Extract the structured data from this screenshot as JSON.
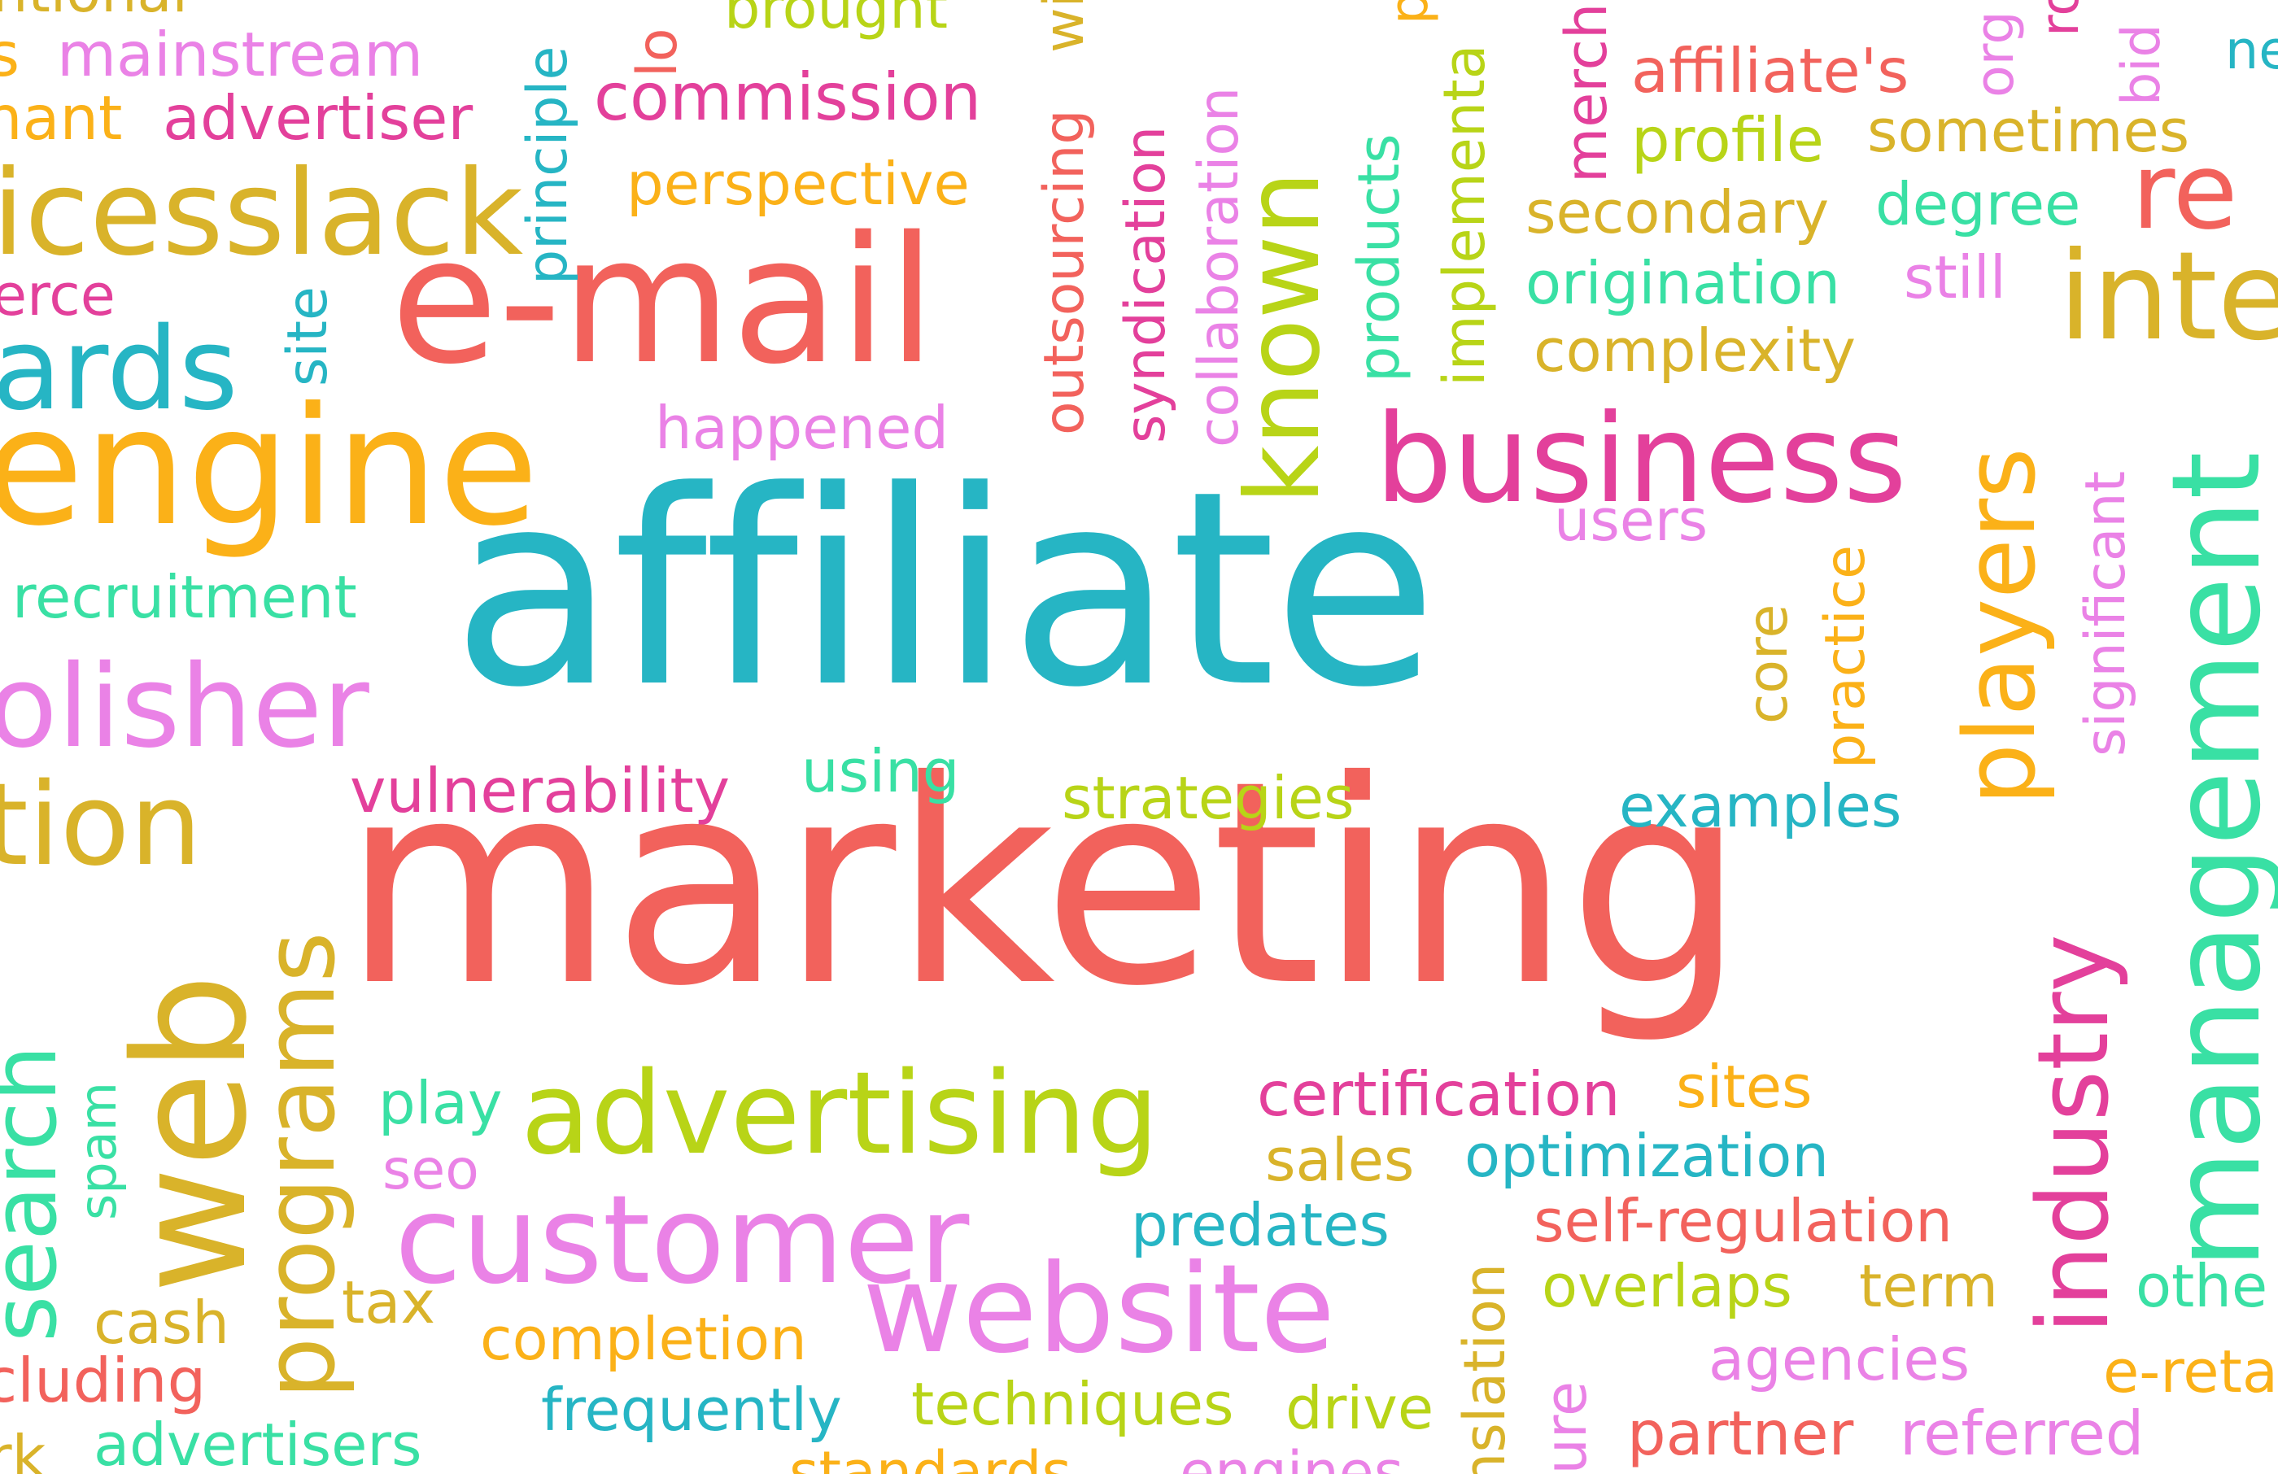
{
  "word_cloud": {
    "main": {
      "affiliate": "affiliate",
      "marketing": "marketing"
    },
    "words": {
      "e_mail": "e-mail",
      "engine": "engine",
      "business": "business",
      "advertising": "advertising",
      "customer": "customer",
      "website": "website",
      "web": "web",
      "programs": "programs",
      "management": "management",
      "industry": "industry",
      "players": "players",
      "known": "known",
      "icesslack": "icesslack",
      "ards": "ards",
      "olisher": "olisher",
      "tion": "tion",
      "search": "search",
      "inte": "inte",
      "re": "re",
      "mainstream": "mainstream",
      "advertiser": "advertiser",
      "nant": "nant",
      "erce": "erce",
      "site": "site",
      "principle": "principle",
      "recruitment": "recruitment",
      "commission": "commission",
      "perspective": "perspective",
      "brought": "brought",
      "happened": "happened",
      "outsourcing": "outsourcing",
      "syndication": "syndication",
      "collaboration": "collaboration",
      "wide": "wide",
      "products": "products",
      "implementa": "implementa",
      "merch": "merch",
      "affiliates": "affiliate's",
      "profile": "profile",
      "sometimes": "sometimes",
      "secondary": "secondary",
      "degree": "degree",
      "origination": "origination",
      "still": "still",
      "complexity": "complexity",
      "users": "users",
      "core": "core",
      "practice": "practice",
      "significant": "significant",
      "vulnerability": "vulnerability",
      "using": "using",
      "strategies": "strategies",
      "examples": "examples",
      "play": "play",
      "seo": "seo",
      "spam": "spam",
      "cash": "cash",
      "tax": "tax",
      "cluding": "cluding",
      "advertisers": "advertisers",
      "certification": "certification",
      "sites": "sites",
      "sales": "sales",
      "optimization": "optimization",
      "predates": "predates",
      "self_regulation": "self-regulation",
      "overlaps": "overlaps",
      "term": "term",
      "other": "othe",
      "agencies": "agencies",
      "e_ret": "e-reta",
      "partner": "partner",
      "referred": "referred",
      "completion": "completion",
      "frequently": "frequently",
      "techniques": "techniques",
      "drive": "drive",
      "nslation": "nslation",
      "ture": "ture",
      "standards": "standards",
      "engines": "engines",
      "rk": "rk",
      "ntional": "ntional",
      "s": "s",
      "lo": "lo",
      "org": "org",
      "bid": "bid",
      "ne": "ne",
      "p_frag": "p",
      "ro": "ro"
    },
    "colors": {
      "pink": "#e8357f",
      "coral": "#f2625c",
      "orange": "#fbb118",
      "mustard": "#d9b32a",
      "lime": "#b8d417",
      "teal": "#26b5c4",
      "mint": "#39e0a4",
      "lilac": "#ea82e6",
      "magenta": "#e3409b"
    }
  }
}
